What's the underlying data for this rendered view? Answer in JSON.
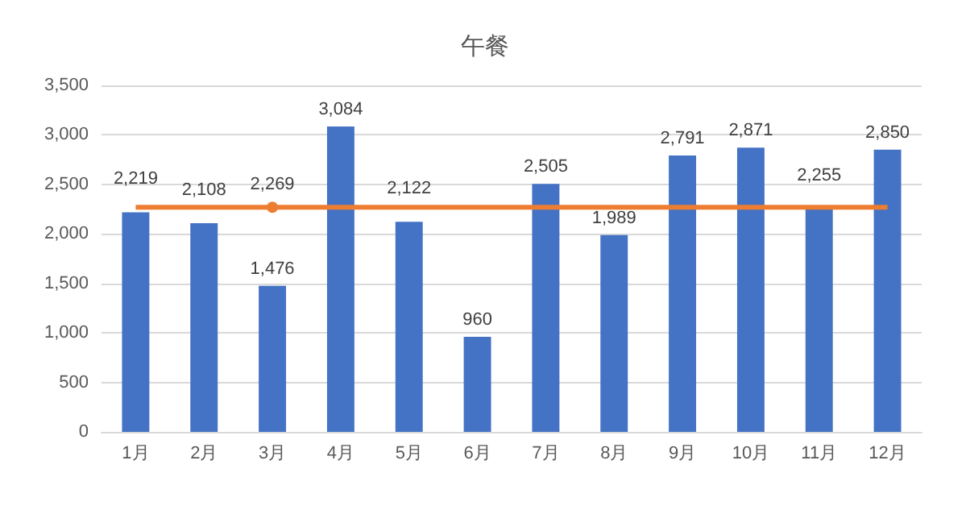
{
  "chart_data": {
    "type": "bar",
    "title": "午餐",
    "categories": [
      "1月",
      "2月",
      "3月",
      "4月",
      "5月",
      "6月",
      "7月",
      "8月",
      "9月",
      "10月",
      "11月",
      "12月"
    ],
    "series": [
      {
        "color": "#4472c4",
        "values": [
          2219,
          2108,
          1476,
          3084,
          2122,
          960,
          2505,
          1989,
          2791,
          2871,
          2255,
          2850
        ],
        "value_labels": [
          "2,219",
          "2,108",
          "1,476",
          "3,084",
          "2,122",
          "960",
          "2,505",
          "1,989",
          "2,791",
          "2,871",
          "2,255",
          "2,850"
        ]
      },
      {
        "type": "line",
        "color": "#ed7d31",
        "values": [
          2269,
          2269,
          2269,
          2269,
          2269,
          2269,
          2269,
          2269,
          2269,
          2269,
          2269,
          2269
        ],
        "value_labels": [
          null,
          null,
          "2,269",
          null,
          null,
          null,
          null,
          null,
          null,
          null,
          null,
          null
        ]
      }
    ],
    "ylim": [
      0,
      3500
    ],
    "yticks": [
      {
        "value": 0,
        "label": "0"
      },
      {
        "value": 500,
        "label": "500"
      },
      {
        "value": 1000,
        "label": "1,000"
      },
      {
        "value": 1500,
        "label": "1,500"
      },
      {
        "value": 2000,
        "label": "2,000"
      },
      {
        "value": 2500,
        "label": "2,500"
      },
      {
        "value": 3000,
        "label": "3,000"
      },
      {
        "value": 3500,
        "label": "3,500"
      }
    ],
    "grid": "y"
  }
}
